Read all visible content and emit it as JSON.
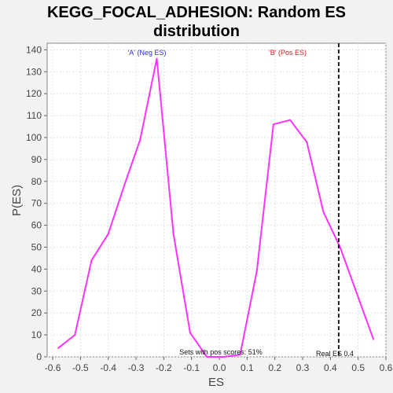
{
  "chart_data": {
    "type": "line",
    "title_line1": "KEGG_FOCAL_ADHESION: Random ES",
    "title_line2": "distribution",
    "xlabel": "ES",
    "ylabel": "P(ES)",
    "xlim": [
      -0.62,
      0.6
    ],
    "ylim": [
      0,
      143
    ],
    "xticks": [
      -0.6,
      -0.5,
      -0.4,
      -0.3,
      -0.2,
      -0.1,
      0.0,
      0.1,
      0.2,
      0.3,
      0.4,
      0.5,
      0.6
    ],
    "xtick_labels": [
      "-0.6",
      "-0.5",
      "-0.4",
      "-0.3",
      "-0.2",
      "-0.1",
      "0.0",
      "0.1",
      "0.2",
      "0.3",
      "0.4",
      "0.5",
      "0.6"
    ],
    "yticks": [
      0,
      10,
      20,
      30,
      40,
      50,
      60,
      70,
      80,
      90,
      100,
      110,
      120,
      130,
      140
    ],
    "ytick_labels": [
      "0",
      "10",
      "20",
      "30",
      "40",
      "50",
      "60",
      "70",
      "80",
      "90",
      "100",
      "110",
      "120",
      "130",
      "140"
    ],
    "grid": true,
    "series": [
      {
        "color": "#ff33ff",
        "x": [
          -0.58,
          -0.52,
          -0.46,
          -0.4,
          -0.34,
          -0.285,
          -0.225,
          -0.165,
          -0.105,
          -0.045,
          0.015,
          0.075,
          0.135,
          0.195,
          0.255,
          0.315,
          0.375,
          0.435,
          0.495,
          0.555
        ],
        "y": [
          4,
          10,
          44,
          56,
          79,
          99,
          136,
          56,
          11,
          0,
          0,
          1,
          39,
          106,
          108,
          98,
          66,
          50,
          29,
          8
        ]
      }
    ],
    "annotations": {
      "neg_label": "'A' (Neg ES)",
      "neg_color": "#2b2bcc",
      "pos_label": "'B' (Pos ES)",
      "pos_color": "#cc2222",
      "sets_text": "Sets with pos scores: 51%",
      "real_es_text": "Real ES 0.4",
      "real_es_value": 0.43
    }
  }
}
